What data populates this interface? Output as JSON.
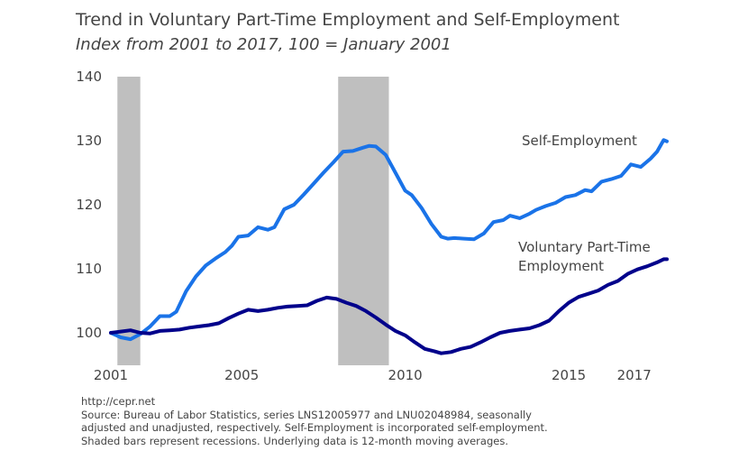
{
  "title": "Trend in Voluntary Part-Time Employment and Self-Employment",
  "subtitle": "Index from 2001 to 2017, 100 = January 2001",
  "footer": {
    "url": "http://cepr.net",
    "source_lines": [
      "Source: Bureau of Labor Statistics, series LNS12005977 and LNU02048984, seasonally",
      "adjusted and unadjusted, respectively. Self-Employment is incorporated self-employment.",
      "Shaded bars represent recessions. Underlying data is 12-month moving averages."
    ]
  },
  "chart_data": {
    "type": "line",
    "title": "Trend in Voluntary Part-Time Employment and Self-Employment",
    "subtitle": "Index from 2001 to 2017, 100 = January 2001",
    "xlim": [
      2001.0,
      2018.0
    ],
    "ylim": [
      95,
      140
    ],
    "x_ticks": [
      {
        "value": 2001,
        "label": "2001"
      },
      {
        "value": 2005,
        "label": "2005"
      },
      {
        "value": 2010,
        "label": "2010"
      },
      {
        "value": 2015,
        "label": "2015"
      },
      {
        "value": 2017,
        "label": "2017"
      }
    ],
    "y_ticks": [
      {
        "value": 100,
        "label": "100"
      },
      {
        "value": 110,
        "label": "110"
      },
      {
        "value": 120,
        "label": "120"
      },
      {
        "value": 130,
        "label": "130"
      },
      {
        "value": 140,
        "label": "140"
      }
    ],
    "grid": false,
    "recessions": [
      {
        "start": 2001.2,
        "end": 2001.9
      },
      {
        "start": 2007.95,
        "end": 2009.5
      }
    ],
    "series": [
      {
        "name": "Self-Employment",
        "label_lines": [
          "Self-Employment"
        ],
        "color": "#1a73e8",
        "points": [
          [
            2001.0,
            100.0
          ],
          [
            2001.3,
            99.3
          ],
          [
            2001.6,
            99.0
          ],
          [
            2001.9,
            99.8
          ],
          [
            2002.2,
            101.0
          ],
          [
            2002.5,
            102.6
          ],
          [
            2002.8,
            102.6
          ],
          [
            2003.0,
            103.3
          ],
          [
            2003.3,
            106.5
          ],
          [
            2003.6,
            108.8
          ],
          [
            2003.9,
            110.5
          ],
          [
            2004.2,
            111.6
          ],
          [
            2004.5,
            112.6
          ],
          [
            2004.7,
            113.6
          ],
          [
            2004.9,
            115.0
          ],
          [
            2005.2,
            115.2
          ],
          [
            2005.5,
            116.5
          ],
          [
            2005.8,
            116.1
          ],
          [
            2006.0,
            116.5
          ],
          [
            2006.3,
            119.3
          ],
          [
            2006.6,
            120.0
          ],
          [
            2006.9,
            121.6
          ],
          [
            2007.2,
            123.3
          ],
          [
            2007.5,
            125.0
          ],
          [
            2007.8,
            126.6
          ],
          [
            2008.1,
            128.3
          ],
          [
            2008.4,
            128.4
          ],
          [
            2008.7,
            128.9
          ],
          [
            2008.9,
            129.2
          ],
          [
            2009.1,
            129.1
          ],
          [
            2009.4,
            127.8
          ],
          [
            2009.7,
            125.0
          ],
          [
            2010.0,
            122.2
          ],
          [
            2010.2,
            121.5
          ],
          [
            2010.5,
            119.5
          ],
          [
            2010.8,
            117.0
          ],
          [
            2011.1,
            115.0
          ],
          [
            2011.3,
            114.7
          ],
          [
            2011.5,
            114.8
          ],
          [
            2011.8,
            114.7
          ],
          [
            2012.1,
            114.6
          ],
          [
            2012.4,
            115.5
          ],
          [
            2012.7,
            117.3
          ],
          [
            2013.0,
            117.6
          ],
          [
            2013.2,
            118.3
          ],
          [
            2013.5,
            117.9
          ],
          [
            2013.8,
            118.6
          ],
          [
            2014.0,
            119.2
          ],
          [
            2014.3,
            119.8
          ],
          [
            2014.6,
            120.3
          ],
          [
            2014.9,
            121.2
          ],
          [
            2015.2,
            121.5
          ],
          [
            2015.5,
            122.3
          ],
          [
            2015.7,
            122.1
          ],
          [
            2016.0,
            123.6
          ],
          [
            2016.3,
            124.0
          ],
          [
            2016.6,
            124.5
          ],
          [
            2016.9,
            126.3
          ],
          [
            2017.2,
            125.9
          ],
          [
            2017.5,
            127.2
          ],
          [
            2017.7,
            128.3
          ],
          [
            2017.9,
            130.1
          ],
          [
            2018.0,
            129.9
          ]
        ]
      },
      {
        "name": "Voluntary Part-Time Employment",
        "label_lines": [
          "Voluntary Part-Time",
          "Employment"
        ],
        "color": "#00008b",
        "points": [
          [
            2001.0,
            100.0
          ],
          [
            2001.3,
            100.2
          ],
          [
            2001.6,
            100.4
          ],
          [
            2001.9,
            100.0
          ],
          [
            2002.2,
            99.9
          ],
          [
            2002.5,
            100.3
          ],
          [
            2002.8,
            100.4
          ],
          [
            2003.1,
            100.5
          ],
          [
            2003.4,
            100.8
          ],
          [
            2003.7,
            101.0
          ],
          [
            2004.0,
            101.2
          ],
          [
            2004.3,
            101.5
          ],
          [
            2004.6,
            102.3
          ],
          [
            2004.9,
            103.0
          ],
          [
            2005.2,
            103.6
          ],
          [
            2005.5,
            103.4
          ],
          [
            2005.8,
            103.6
          ],
          [
            2006.1,
            103.9
          ],
          [
            2006.4,
            104.1
          ],
          [
            2006.7,
            104.2
          ],
          [
            2007.0,
            104.3
          ],
          [
            2007.3,
            105.0
          ],
          [
            2007.6,
            105.5
          ],
          [
            2007.9,
            105.3
          ],
          [
            2008.2,
            104.7
          ],
          [
            2008.5,
            104.2
          ],
          [
            2008.8,
            103.4
          ],
          [
            2009.1,
            102.4
          ],
          [
            2009.4,
            101.3
          ],
          [
            2009.7,
            100.3
          ],
          [
            2010.0,
            99.6
          ],
          [
            2010.3,
            98.5
          ],
          [
            2010.6,
            97.5
          ],
          [
            2010.9,
            97.1
          ],
          [
            2011.1,
            96.8
          ],
          [
            2011.4,
            97.0
          ],
          [
            2011.7,
            97.5
          ],
          [
            2012.0,
            97.8
          ],
          [
            2012.3,
            98.5
          ],
          [
            2012.6,
            99.3
          ],
          [
            2012.9,
            100.0
          ],
          [
            2013.2,
            100.3
          ],
          [
            2013.5,
            100.5
          ],
          [
            2013.8,
            100.7
          ],
          [
            2014.1,
            101.2
          ],
          [
            2014.4,
            101.9
          ],
          [
            2014.7,
            103.4
          ],
          [
            2015.0,
            104.7
          ],
          [
            2015.3,
            105.6
          ],
          [
            2015.6,
            106.1
          ],
          [
            2015.9,
            106.6
          ],
          [
            2016.2,
            107.5
          ],
          [
            2016.5,
            108.1
          ],
          [
            2016.8,
            109.2
          ],
          [
            2017.1,
            109.9
          ],
          [
            2017.4,
            110.4
          ],
          [
            2017.7,
            111.0
          ],
          [
            2017.9,
            111.5
          ],
          [
            2018.0,
            111.5
          ]
        ]
      }
    ]
  }
}
